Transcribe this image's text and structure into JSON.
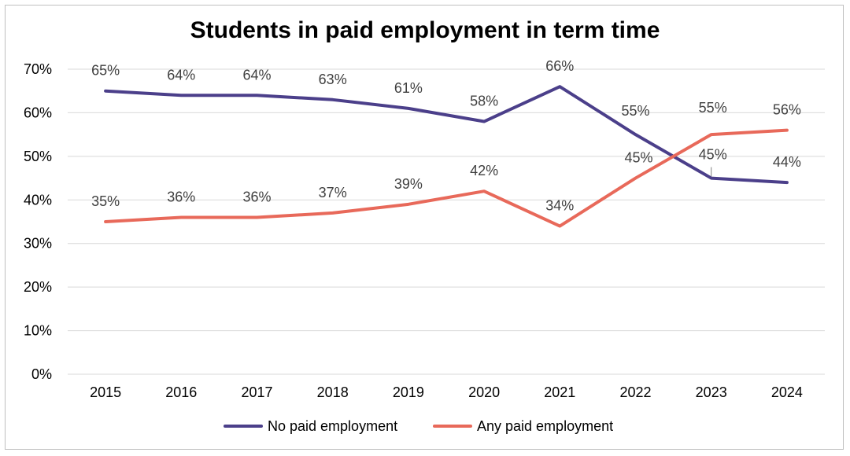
{
  "chart_data": {
    "type": "line",
    "title": "Students in paid employment in term time",
    "xlabel": "",
    "ylabel": "",
    "categories": [
      "2015",
      "2016",
      "2017",
      "2018",
      "2019",
      "2020",
      "2021",
      "2022",
      "2023",
      "2024"
    ],
    "ylim": [
      0,
      70
    ],
    "yticks": [
      "0%",
      "10%",
      "20%",
      "30%",
      "40%",
      "50%",
      "60%",
      "70%"
    ],
    "grid": "horizontal",
    "legend_position": "bottom",
    "series": [
      {
        "name": "No paid employment",
        "color": "#4b3f8a",
        "values": [
          65,
          64,
          64,
          63,
          61,
          58,
          66,
          55,
          45,
          44
        ],
        "labels": [
          "65%",
          "64%",
          "64%",
          "63%",
          "61%",
          "58%",
          "66%",
          "55%",
          "45%",
          "44%"
        ]
      },
      {
        "name": "Any paid employment",
        "color": "#e8695a",
        "values": [
          35,
          36,
          36,
          37,
          39,
          42,
          34,
          45,
          55,
          56
        ],
        "labels": [
          "35%",
          "36%",
          "36%",
          "37%",
          "39%",
          "42%",
          "34%",
          "45%",
          "55%",
          "56%"
        ]
      }
    ]
  }
}
